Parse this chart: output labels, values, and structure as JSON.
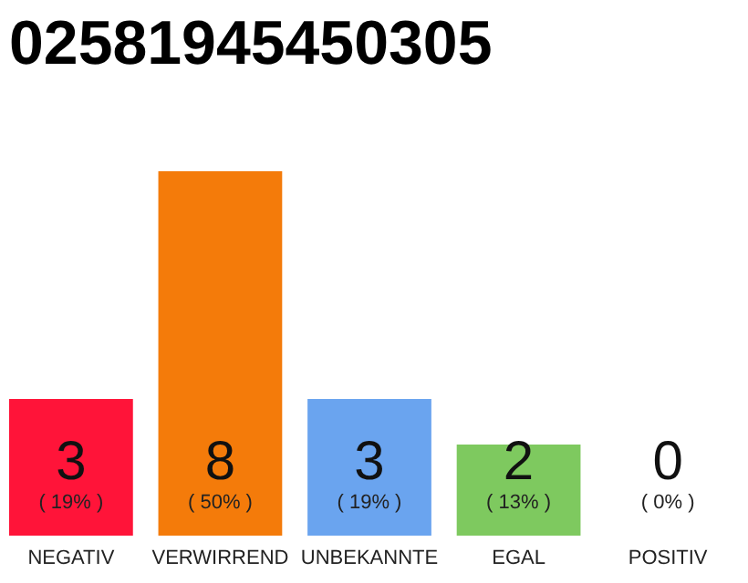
{
  "chart_data": {
    "type": "bar",
    "title": "02581945450305",
    "categories": [
      "NEGATIV",
      "VERWIRREND",
      "UNBEKANNTE",
      "EGAL",
      "POSITIV"
    ],
    "values": [
      3,
      8,
      3,
      2,
      0
    ],
    "colors": [
      "#ff1439",
      "#f47b0a",
      "#6aa4ef",
      "#7ec95f",
      "#eeeeee"
    ],
    "data_labels": true,
    "annotations": [
      "( 19% )",
      "( 50% )",
      "( 19% )",
      "( 13% )",
      "( 0% )"
    ],
    "grid": false,
    "legend": false
  }
}
